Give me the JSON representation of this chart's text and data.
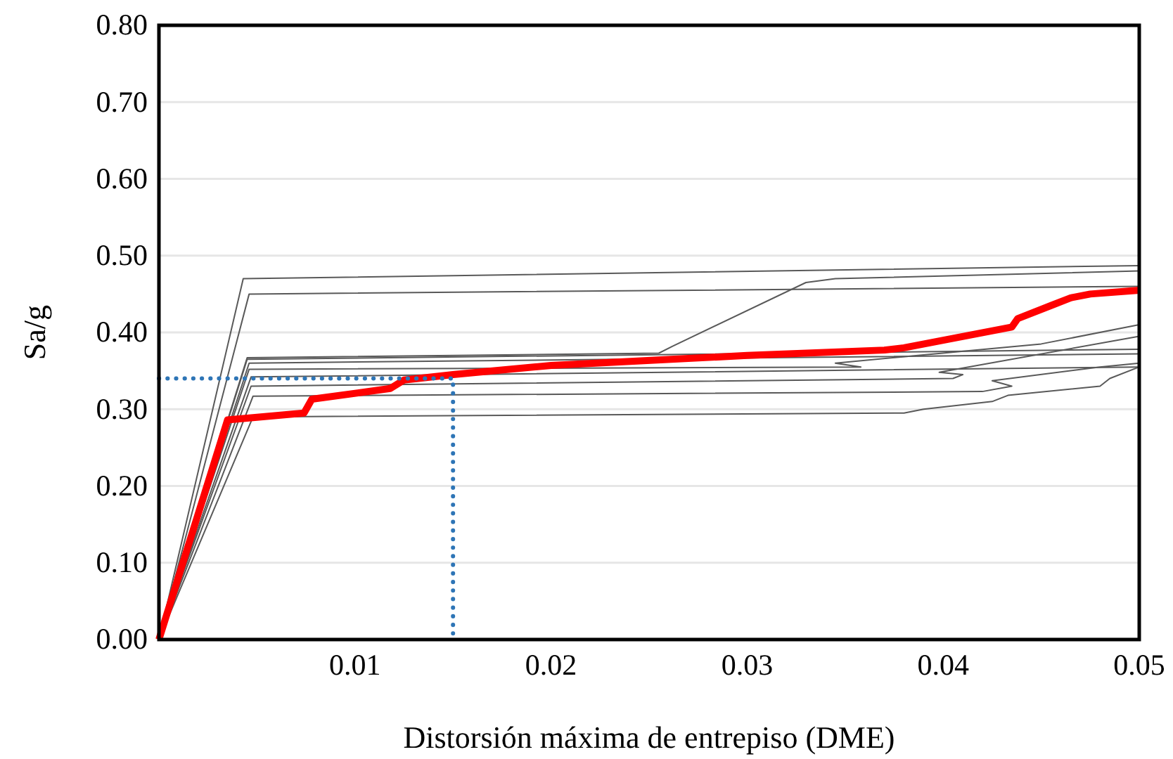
{
  "chart_data": {
    "type": "line",
    "xlabel": "Distorsión máxima de entrepiso (DME)",
    "ylabel": "Sa/g",
    "xlim": [
      0,
      0.05
    ],
    "xticks": [
      0.01,
      0.02,
      0.03,
      0.04,
      0.05
    ],
    "ylim": [
      0,
      0.8
    ],
    "yticks": [
      {
        "value": 0,
        "label": "0.00"
      },
      {
        "value": 0.1,
        "label": "0.10"
      },
      {
        "value": 0.2,
        "label": "0.20"
      },
      {
        "value": 0.3,
        "label": "0.30"
      },
      {
        "value": 0.4,
        "label": "0.40"
      },
      {
        "value": 0.5,
        "label": "0.50"
      },
      {
        "value": 0.6,
        "label": "0.60"
      },
      {
        "value": 0.7,
        "label": "0.70"
      },
      {
        "value": 0.8,
        "label": "0.80"
      }
    ],
    "grid": "y",
    "marker": "none",
    "line_style": "solid",
    "series": [
      {
        "color": "#595959",
        "x": [
          0,
          0.0043,
          0.05
        ],
        "values": [
          0,
          0.47,
          0.487
        ]
      },
      {
        "color": "#595959",
        "x": [
          0,
          0.0046,
          0.05
        ],
        "values": [
          0,
          0.45,
          0.46
        ]
      },
      {
        "color": "#595959",
        "x": [
          0,
          0.0045,
          0.0255,
          0.0262,
          0.033,
          0.0345,
          0.05
        ],
        "values": [
          0,
          0.367,
          0.373,
          0.382,
          0.465,
          0.47,
          0.48
        ]
      },
      {
        "color": "#595959",
        "x": [
          0,
          0.0045,
          0.05
        ],
        "values": [
          0,
          0.365,
          0.378
        ]
      },
      {
        "color": "#595959",
        "x": [
          0,
          0.0046,
          0.05
        ],
        "values": [
          0,
          0.36,
          0.372
        ]
      },
      {
        "color": "#595959",
        "x": [
          0,
          0.0046,
          0.0358,
          0.0345,
          0.045,
          0.05
        ],
        "values": [
          0,
          0.352,
          0.355,
          0.36,
          0.385,
          0.41
        ]
      },
      {
        "color": "#595959",
        "x": [
          0,
          0.0047,
          0.05
        ],
        "values": [
          0,
          0.342,
          0.355
        ]
      },
      {
        "color": "#595959",
        "x": [
          0,
          0.0047,
          0.0405,
          0.041,
          0.0398,
          0.05
        ],
        "values": [
          0,
          0.33,
          0.34,
          0.345,
          0.348,
          0.395
        ]
      },
      {
        "color": "#595959",
        "x": [
          0,
          0.0048,
          0.042,
          0.0435,
          0.0425,
          0.048,
          0.05
        ],
        "values": [
          0,
          0.317,
          0.323,
          0.33,
          0.337,
          0.355,
          0.36
        ]
      },
      {
        "color": "#595959",
        "x": [
          0,
          0.0048,
          0.038,
          0.039,
          0.0425,
          0.0433,
          0.048,
          0.0485,
          0.05
        ],
        "values": [
          0,
          0.29,
          0.295,
          0.3,
          0.31,
          0.318,
          0.33,
          0.34,
          0.355
        ]
      },
      {
        "color": "#ff0000",
        "x": [
          0,
          0.0035,
          0.0074,
          0.0078,
          0.0118,
          0.0125,
          0.015,
          0.02,
          0.03,
          0.037,
          0.038,
          0.0435,
          0.0438,
          0.0455,
          0.0465,
          0.0475,
          0.05
        ],
        "values": [
          0,
          0.286,
          0.295,
          0.313,
          0.327,
          0.338,
          0.345,
          0.357,
          0.37,
          0.377,
          0.38,
          0.407,
          0.418,
          0.435,
          0.445,
          0.45,
          0.455
        ]
      },
      {
        "color": "#2e75b6",
        "line_style": "dotted",
        "x": [
          0,
          0.015,
          0.015
        ],
        "values": [
          0.34,
          0.34,
          0
        ]
      }
    ]
  }
}
